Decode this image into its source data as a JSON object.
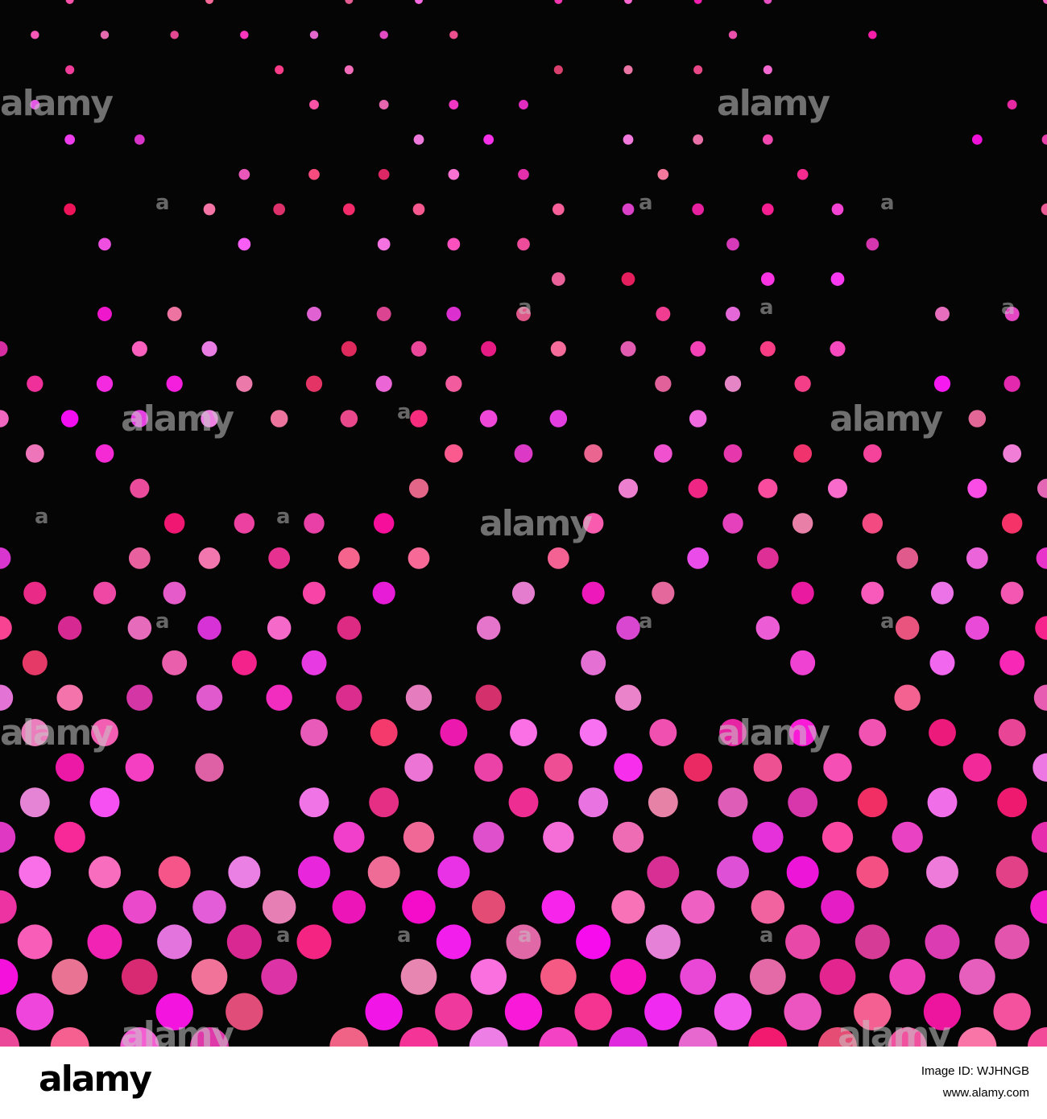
{
  "watermark": "alamy",
  "footer": {
    "logo": "alamy",
    "image_id": "Image ID: WJHNGB",
    "url": "www.alamy.com"
  }
}
